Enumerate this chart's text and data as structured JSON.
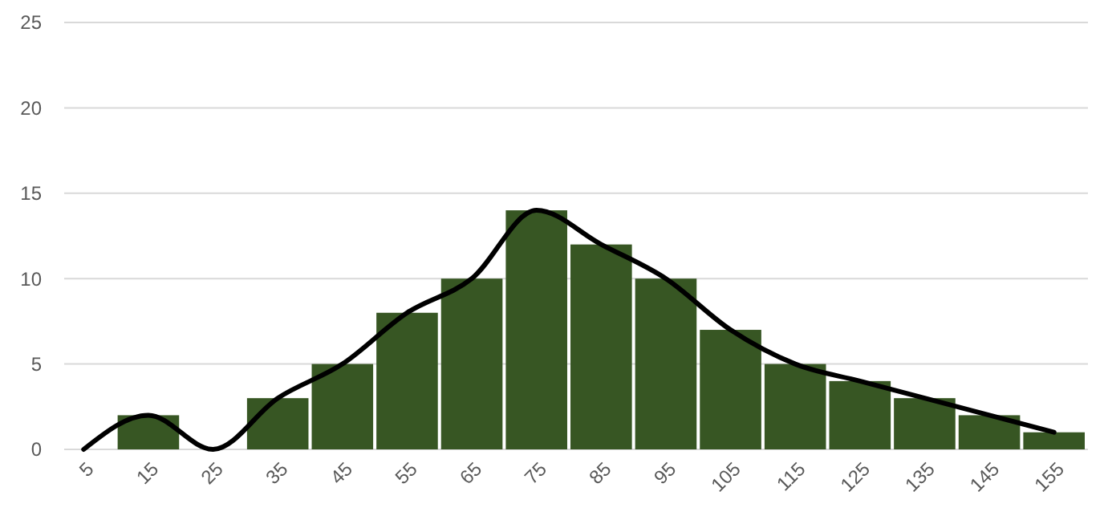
{
  "chart_data": {
    "type": "bar",
    "categories": [
      "5",
      "15",
      "25",
      "35",
      "45",
      "55",
      "65",
      "75",
      "85",
      "95",
      "105",
      "115",
      "125",
      "135",
      "145",
      "155"
    ],
    "series": [
      {
        "color": "#375623",
        "values": [
          0,
          2,
          0,
          3,
          5,
          8,
          10,
          14,
          12,
          10,
          7,
          5,
          4,
          3,
          2,
          1
        ]
      },
      {
        "type": "line",
        "color": "#000000",
        "values": [
          0,
          2,
          0,
          3,
          5,
          8,
          10,
          14,
          12,
          10,
          7,
          5,
          4,
          3,
          2,
          1
        ]
      }
    ],
    "ylim": [
      0,
      25
    ],
    "yticks": [
      0,
      5,
      10,
      15,
      20,
      25
    ],
    "grid": "y",
    "marker": "none",
    "line_style": "solid"
  }
}
